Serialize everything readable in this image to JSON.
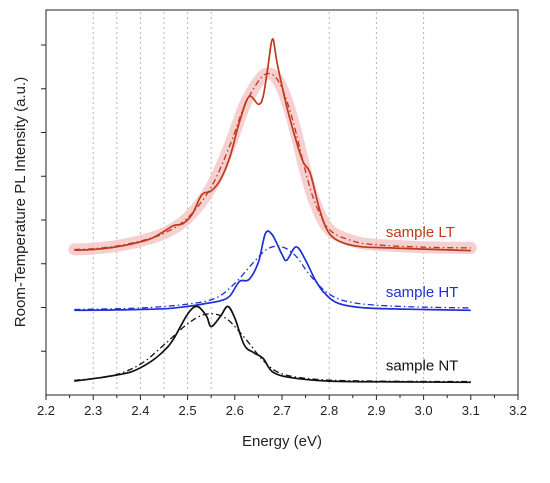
{
  "chart_data": {
    "type": "line",
    "xlabel": "Energy (eV)",
    "ylabel": "Room-Temperature PL Intensity (a.u.)",
    "xlim": [
      2.2,
      3.2
    ],
    "x_ticks": [
      "2.2",
      "2.3",
      "2.4",
      "2.5",
      "2.6",
      "2.7",
      "2.8",
      "2.9",
      "3.0",
      "3.1",
      "3.2"
    ],
    "ylim": [
      0,
      1.0
    ],
    "vertical_grid": true,
    "vertical_grid_x": [
      2.3,
      2.35,
      2.4,
      2.45,
      2.5,
      2.55,
      2.8,
      2.9,
      3.0
    ],
    "series": [
      {
        "name": "sample LT",
        "color": "#c0391b",
        "band_color": "#f4c8c8",
        "solid": [
          [
            2.26,
            0.376
          ],
          [
            2.3,
            0.378
          ],
          [
            2.34,
            0.383
          ],
          [
            2.38,
            0.392
          ],
          [
            2.42,
            0.405
          ],
          [
            2.45,
            0.425
          ],
          [
            2.47,
            0.44
          ],
          [
            2.49,
            0.445
          ],
          [
            2.51,
            0.47
          ],
          [
            2.53,
            0.52
          ],
          [
            2.55,
            0.53
          ],
          [
            2.57,
            0.56
          ],
          [
            2.59,
            0.62
          ],
          [
            2.61,
            0.71
          ],
          [
            2.63,
            0.775
          ],
          [
            2.65,
            0.755
          ],
          [
            2.66,
            0.775
          ],
          [
            2.67,
            0.85
          ],
          [
            2.68,
            0.925
          ],
          [
            2.69,
            0.86
          ],
          [
            2.71,
            0.75
          ],
          [
            2.73,
            0.66
          ],
          [
            2.745,
            0.605
          ],
          [
            2.76,
            0.575
          ],
          [
            2.78,
            0.48
          ],
          [
            2.8,
            0.42
          ],
          [
            2.83,
            0.395
          ],
          [
            2.87,
            0.385
          ],
          [
            2.93,
            0.382
          ],
          [
            3.0,
            0.379
          ],
          [
            3.1,
            0.375
          ]
        ],
        "dashed": [
          [
            2.26,
            0.378
          ],
          [
            2.3,
            0.38
          ],
          [
            2.35,
            0.387
          ],
          [
            2.4,
            0.4
          ],
          [
            2.45,
            0.42
          ],
          [
            2.5,
            0.46
          ],
          [
            2.55,
            0.54
          ],
          [
            2.59,
            0.65
          ],
          [
            2.62,
            0.75
          ],
          [
            2.65,
            0.815
          ],
          [
            2.67,
            0.835
          ],
          [
            2.69,
            0.82
          ],
          [
            2.71,
            0.765
          ],
          [
            2.73,
            0.68
          ],
          [
            2.75,
            0.58
          ],
          [
            2.77,
            0.5
          ],
          [
            2.8,
            0.43
          ],
          [
            2.85,
            0.4
          ],
          [
            2.9,
            0.39
          ],
          [
            3.0,
            0.384
          ],
          [
            3.1,
            0.382
          ]
        ]
      },
      {
        "name": "sample HT",
        "color": "#1f2fd6",
        "solid": [
          [
            2.26,
            0.22
          ],
          [
            2.35,
            0.221
          ],
          [
            2.45,
            0.224
          ],
          [
            2.5,
            0.23
          ],
          [
            2.54,
            0.238
          ],
          [
            2.57,
            0.245
          ],
          [
            2.59,
            0.258
          ],
          [
            2.61,
            0.295
          ],
          [
            2.63,
            0.3
          ],
          [
            2.65,
            0.345
          ],
          [
            2.665,
            0.42
          ],
          [
            2.68,
            0.415
          ],
          [
            2.7,
            0.365
          ],
          [
            2.71,
            0.35
          ],
          [
            2.73,
            0.385
          ],
          [
            2.75,
            0.35
          ],
          [
            2.77,
            0.3
          ],
          [
            2.79,
            0.265
          ],
          [
            2.82,
            0.238
          ],
          [
            2.88,
            0.226
          ],
          [
            3.0,
            0.222
          ],
          [
            3.1,
            0.22
          ]
        ],
        "dashed": [
          [
            2.26,
            0.222
          ],
          [
            2.4,
            0.226
          ],
          [
            2.5,
            0.236
          ],
          [
            2.56,
            0.252
          ],
          [
            2.6,
            0.29
          ],
          [
            2.64,
            0.345
          ],
          [
            2.67,
            0.38
          ],
          [
            2.7,
            0.385
          ],
          [
            2.73,
            0.36
          ],
          [
            2.76,
            0.31
          ],
          [
            2.8,
            0.262
          ],
          [
            2.85,
            0.24
          ],
          [
            2.95,
            0.23
          ],
          [
            3.1,
            0.226
          ]
        ]
      },
      {
        "name": "sample NT",
        "color": "#111111",
        "solid": [
          [
            2.26,
            0.036
          ],
          [
            2.32,
            0.046
          ],
          [
            2.38,
            0.06
          ],
          [
            2.42,
            0.085
          ],
          [
            2.45,
            0.115
          ],
          [
            2.47,
            0.145
          ],
          [
            2.5,
            0.21
          ],
          [
            2.52,
            0.23
          ],
          [
            2.54,
            0.205
          ],
          [
            2.55,
            0.178
          ],
          [
            2.57,
            0.205
          ],
          [
            2.585,
            0.23
          ],
          [
            2.6,
            0.2
          ],
          [
            2.62,
            0.13
          ],
          [
            2.64,
            0.11
          ],
          [
            2.66,
            0.095
          ],
          [
            2.68,
            0.06
          ],
          [
            2.72,
            0.045
          ],
          [
            2.8,
            0.036
          ],
          [
            2.95,
            0.034
          ],
          [
            3.1,
            0.033
          ]
        ],
        "dashed": [
          [
            2.26,
            0.038
          ],
          [
            2.34,
            0.05
          ],
          [
            2.4,
            0.08
          ],
          [
            2.45,
            0.13
          ],
          [
            2.5,
            0.185
          ],
          [
            2.54,
            0.21
          ],
          [
            2.58,
            0.2
          ],
          [
            2.62,
            0.15
          ],
          [
            2.66,
            0.09
          ],
          [
            2.7,
            0.055
          ],
          [
            2.78,
            0.04
          ],
          [
            2.9,
            0.036
          ],
          [
            3.1,
            0.035
          ]
        ]
      }
    ]
  }
}
